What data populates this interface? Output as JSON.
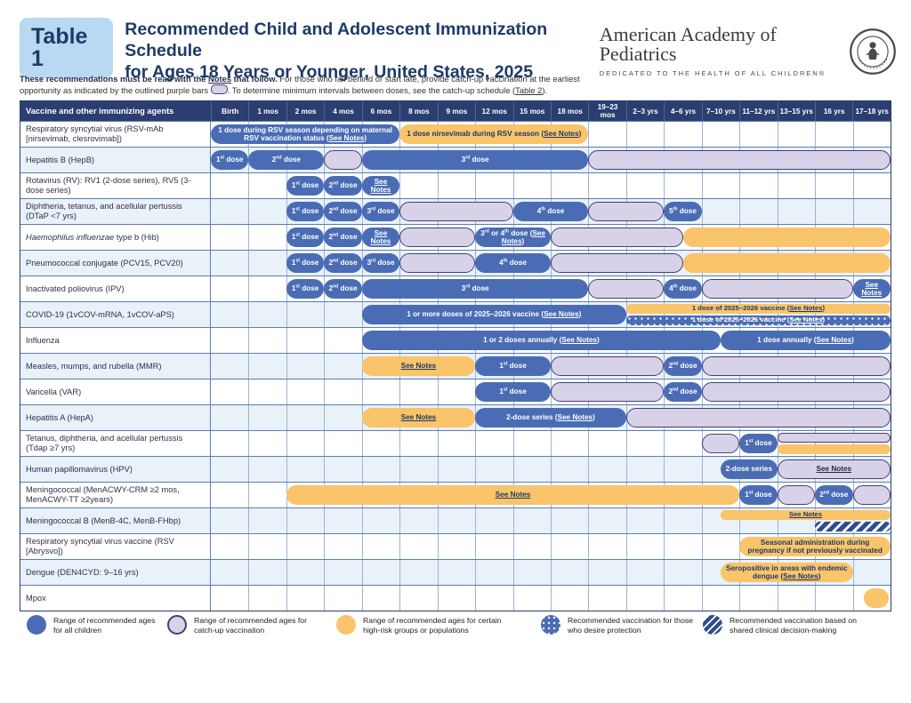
{
  "header": {
    "badge": "Table 1",
    "title_line1": "Recommended Child and Adolescent Immunization Schedule",
    "title_line2": "for Ages 18 Years or Younger, United States, 2025",
    "logo": {
      "name": "American Academy of Pediatrics",
      "tagline": "DEDICATED TO THE HEALTH OF ALL CHILDREN®"
    }
  },
  "intro": {
    "bold1": "These recommendations must be read with the ",
    "notes_link": "Notes",
    "bold2": " that follow.",
    "regular1": " For those who fall behind or start late, provide catch-up vaccination at the earliest opportunity as indicated by the outlined purple bars ",
    "regular2": ". To determine minimum intervals between doses, see the catch-up schedule (",
    "table2_link": "Table 2",
    "regular3": ")."
  },
  "colors": {
    "navy": "#2c3e70",
    "blue_bar": "#4a6cb4",
    "orange_bar": "#f9c46a",
    "purple_fill": "#d8d2e8",
    "purple_border": "#473c78",
    "even_row": "#e9f1f9",
    "badge_bg": "#b9d8f1",
    "title_text": "#1e3a68"
  },
  "table": {
    "corner": "Vaccine and other immunizing agents",
    "columns": [
      "Birth",
      "1 mos",
      "2 mos",
      "4 mos",
      "6 mos",
      "8 mos",
      "9 mos",
      "12 mos",
      "15 mos",
      "18 mos",
      "19–23 mos",
      "2–3 yrs",
      "4–6 yrs",
      "7–10 yrs",
      "11–12 yrs",
      "13–15 yrs",
      "16 yrs",
      "17–18 yrs"
    ],
    "rows": [
      {
        "id": "rsv-mab",
        "name": [
          {
            "t": "Respiratory syncytial virus (RSV-mAb [nirsevimab, clesrovimab])"
          }
        ],
        "bars": [
          {
            "c": "blue",
            "v": "full",
            "s": 0,
            "e": 5,
            "l": "1 dose during RSV season depending on maternal RSV vaccination status (See Notes)"
          },
          {
            "c": "orange",
            "v": "full",
            "s": 5,
            "e": 10,
            "l": "1 dose nirsevimab during RSV season (See Notes)"
          }
        ]
      },
      {
        "id": "hepb",
        "name": [
          {
            "t": "Hepatitis B (HepB)"
          }
        ],
        "bars": [
          {
            "c": "blue",
            "v": "full",
            "s": 0,
            "e": 1,
            "l": "1st dose"
          },
          {
            "c": "blue",
            "v": "full",
            "s": 1,
            "e": 3,
            "l": "2nd dose"
          },
          {
            "c": "purple",
            "v": "full",
            "s": 3,
            "e": 4,
            "l": ""
          },
          {
            "c": "blue",
            "v": "full",
            "s": 4,
            "e": 10,
            "l": "3rd dose"
          },
          {
            "c": "purple",
            "v": "full",
            "s": 10,
            "e": 18,
            "l": ""
          }
        ]
      },
      {
        "id": "rv",
        "name": [
          {
            "t": "Rotavirus (RV): RV1 (2-dose series), RV5 (3-dose series)"
          }
        ],
        "bars": [
          {
            "c": "blue",
            "v": "full",
            "s": 2,
            "e": 3,
            "l": "1st dose"
          },
          {
            "c": "blue",
            "v": "full",
            "s": 3,
            "e": 4,
            "l": "2nd dose"
          },
          {
            "c": "blue",
            "v": "full",
            "s": 4,
            "e": 5,
            "l": "See Notes"
          }
        ]
      },
      {
        "id": "dtap",
        "name": [
          {
            "t": "Diphtheria, tetanus, and acellular pertussis (DTaP <7 yrs)"
          }
        ],
        "bars": [
          {
            "c": "blue",
            "v": "full",
            "s": 2,
            "e": 3,
            "l": "1st dose"
          },
          {
            "c": "blue",
            "v": "full",
            "s": 3,
            "e": 4,
            "l": "2nd dose"
          },
          {
            "c": "blue",
            "v": "full",
            "s": 4,
            "e": 5,
            "l": "3rd dose"
          },
          {
            "c": "purple",
            "v": "full",
            "s": 5,
            "e": 8,
            "l": ""
          },
          {
            "c": "blue",
            "v": "full",
            "s": 8,
            "e": 10,
            "l": "4th dose"
          },
          {
            "c": "purple",
            "v": "full",
            "s": 10,
            "e": 12,
            "l": ""
          },
          {
            "c": "blue",
            "v": "full",
            "s": 12,
            "e": 13,
            "l": "5th dose"
          }
        ]
      },
      {
        "id": "hib",
        "name": [
          {
            "t": "Haemophilus influenzae",
            "i": true
          },
          {
            "t": " type b (Hib)"
          }
        ],
        "bars": [
          {
            "c": "blue",
            "v": "full",
            "s": 2,
            "e": 3,
            "l": "1st dose"
          },
          {
            "c": "blue",
            "v": "full",
            "s": 3,
            "e": 4,
            "l": "2nd dose"
          },
          {
            "c": "blue",
            "v": "full",
            "s": 4,
            "e": 5,
            "l": "See Notes"
          },
          {
            "c": "purple",
            "v": "full",
            "s": 5,
            "e": 7,
            "l": ""
          },
          {
            "c": "blue",
            "v": "full",
            "s": 7,
            "e": 9,
            "l": "3rd or 4th dose (See Notes)"
          },
          {
            "c": "purple",
            "v": "full",
            "s": 9,
            "e": 12.5,
            "l": ""
          },
          {
            "c": "orange",
            "v": "full",
            "s": 12.5,
            "e": 18,
            "l": ""
          }
        ]
      },
      {
        "id": "pcv",
        "name": [
          {
            "t": "Pneumococcal conjugate (PCV15, PCV20)"
          }
        ],
        "bars": [
          {
            "c": "blue",
            "v": "full",
            "s": 2,
            "e": 3,
            "l": "1st dose"
          },
          {
            "c": "blue",
            "v": "full",
            "s": 3,
            "e": 4,
            "l": "2nd dose"
          },
          {
            "c": "blue",
            "v": "full",
            "s": 4,
            "e": 5,
            "l": "3rd dose"
          },
          {
            "c": "purple",
            "v": "full",
            "s": 5,
            "e": 7,
            "l": ""
          },
          {
            "c": "blue",
            "v": "full",
            "s": 7,
            "e": 9,
            "l": "4th dose"
          },
          {
            "c": "purple",
            "v": "full",
            "s": 9,
            "e": 12.5,
            "l": ""
          },
          {
            "c": "orange",
            "v": "full",
            "s": 12.5,
            "e": 18,
            "l": ""
          }
        ]
      },
      {
        "id": "ipv",
        "name": [
          {
            "t": "Inactivated poliovirus (IPV)"
          }
        ],
        "bars": [
          {
            "c": "blue",
            "v": "full",
            "s": 2,
            "e": 3,
            "l": "1st dose"
          },
          {
            "c": "blue",
            "v": "full",
            "s": 3,
            "e": 4,
            "l": "2nd dose"
          },
          {
            "c": "blue",
            "v": "full",
            "s": 4,
            "e": 10,
            "l": "3rd dose"
          },
          {
            "c": "purple",
            "v": "full",
            "s": 10,
            "e": 12,
            "l": ""
          },
          {
            "c": "blue",
            "v": "full",
            "s": 12,
            "e": 13,
            "l": "4th dose"
          },
          {
            "c": "purple",
            "v": "full",
            "s": 13,
            "e": 17,
            "l": ""
          },
          {
            "c": "blue",
            "v": "full",
            "s": 17,
            "e": 18,
            "l": "See Notes"
          }
        ]
      },
      {
        "id": "covid",
        "name": [
          {
            "t": "COVID-19 (1vCOV-mRNA, 1vCOV-aPS)"
          }
        ],
        "bars": [
          {
            "c": "blue",
            "v": "full",
            "s": 4,
            "e": 11,
            "l": "1 or more doses of 2025–2026 vaccine (See Notes)"
          },
          {
            "c": "orange",
            "v": "top",
            "s": 11,
            "e": 18,
            "l": "1 dose of 2025–2026 vaccine (See Notes)"
          },
          {
            "c": "dotted",
            "v": "bot",
            "s": 11,
            "e": 18,
            "l": "1 dose of 2025–2026 vaccine (See Notes)"
          }
        ]
      },
      {
        "id": "influenza",
        "name": [
          {
            "t": "Influenza"
          }
        ],
        "bars": [
          {
            "c": "blue",
            "v": "full",
            "s": 4,
            "e": 13.5,
            "l": "1 or 2 doses annually (See Notes)"
          },
          {
            "c": "blue",
            "v": "full",
            "s": 13.5,
            "e": 18,
            "l": "1 dose annually (See Notes)"
          }
        ]
      },
      {
        "id": "mmr",
        "name": [
          {
            "t": "Measles, mumps, and rubella (MMR)"
          }
        ],
        "bars": [
          {
            "c": "orange",
            "v": "full",
            "s": 4,
            "e": 7,
            "l": "See Notes"
          },
          {
            "c": "blue",
            "v": "full",
            "s": 7,
            "e": 9,
            "l": "1st dose"
          },
          {
            "c": "purple",
            "v": "full",
            "s": 9,
            "e": 12,
            "l": ""
          },
          {
            "c": "blue",
            "v": "full",
            "s": 12,
            "e": 13,
            "l": "2nd dose"
          },
          {
            "c": "purple",
            "v": "full",
            "s": 13,
            "e": 18,
            "l": ""
          }
        ]
      },
      {
        "id": "var",
        "name": [
          {
            "t": "Varicella (VAR)"
          }
        ],
        "bars": [
          {
            "c": "blue",
            "v": "full",
            "s": 7,
            "e": 9,
            "l": "1st dose"
          },
          {
            "c": "purple",
            "v": "full",
            "s": 9,
            "e": 12,
            "l": ""
          },
          {
            "c": "blue",
            "v": "full",
            "s": 12,
            "e": 13,
            "l": "2nd dose"
          },
          {
            "c": "purple",
            "v": "full",
            "s": 13,
            "e": 18,
            "l": ""
          }
        ]
      },
      {
        "id": "hepa",
        "name": [
          {
            "t": "Hepatitis A (HepA)"
          }
        ],
        "bars": [
          {
            "c": "orange",
            "v": "full",
            "s": 4,
            "e": 7,
            "l": "See Notes"
          },
          {
            "c": "blue",
            "v": "full",
            "s": 7,
            "e": 11,
            "l": "2-dose series (See Notes)"
          },
          {
            "c": "purple",
            "v": "full",
            "s": 11,
            "e": 18,
            "l": ""
          }
        ]
      },
      {
        "id": "tdap",
        "name": [
          {
            "t": "Tetanus, diphtheria, and acellular pertussis (Tdap ≥7 yrs)"
          }
        ],
        "bars": [
          {
            "c": "purple",
            "v": "full",
            "s": 13,
            "e": 14,
            "l": ""
          },
          {
            "c": "blue",
            "v": "full",
            "s": 14,
            "e": 15,
            "l": "1st dose"
          },
          {
            "c": "purple",
            "v": "top",
            "s": 15,
            "e": 18,
            "l": ""
          },
          {
            "c": "orange",
            "v": "bot",
            "s": 15,
            "e": 18,
            "l": ""
          }
        ]
      },
      {
        "id": "hpv",
        "name": [
          {
            "t": "Human papillomavirus (HPV)"
          }
        ],
        "bars": [
          {
            "c": "blue",
            "v": "full",
            "s": 13.5,
            "e": 15,
            "l": "2-dose series"
          },
          {
            "c": "purple",
            "v": "full",
            "s": 15,
            "e": 18,
            "l": "See Notes"
          }
        ]
      },
      {
        "id": "menacwy",
        "name": [
          {
            "t": "Meningococcal (MenACWY-CRM ≥2 mos, MenACWY-TT ≥2years)"
          }
        ],
        "bars": [
          {
            "c": "orange",
            "v": "full",
            "s": 2,
            "e": 14,
            "l": "See Notes"
          },
          {
            "c": "blue",
            "v": "full",
            "s": 14,
            "e": 15,
            "l": "1st dose"
          },
          {
            "c": "purple",
            "v": "full",
            "s": 15,
            "e": 16,
            "l": ""
          },
          {
            "c": "blue",
            "v": "full",
            "s": 16,
            "e": 17,
            "l": "2nd dose"
          },
          {
            "c": "purple",
            "v": "full",
            "s": 17,
            "e": 18,
            "l": ""
          }
        ]
      },
      {
        "id": "menb",
        "name": [
          {
            "t": "Meningococcal B (MenB-4C, MenB-FHbp)"
          }
        ],
        "bars": [
          {
            "c": "orange",
            "v": "top",
            "s": 13.5,
            "e": 18,
            "l": "See Notes"
          },
          {
            "c": "hatched",
            "v": "bot",
            "s": 16,
            "e": 18,
            "l": ""
          }
        ]
      },
      {
        "id": "rsv-vaccine",
        "name": [
          {
            "t": "Respiratory syncytial virus vaccine (RSV [Abrysvo])"
          }
        ],
        "bars": [
          {
            "c": "orange",
            "v": "full",
            "s": 14,
            "e": 18,
            "l": "Seasonal administration during pregnancy if not previously vaccinated"
          }
        ]
      },
      {
        "id": "dengue",
        "name": [
          {
            "t": "Dengue (DEN4CYD: 9–16 yrs)"
          }
        ],
        "bars": [
          {
            "c": "orange",
            "v": "full",
            "s": 13.5,
            "e": 17,
            "l": "Seropositive in areas with endemic dengue (See Notes)"
          }
        ]
      },
      {
        "id": "mpox",
        "name": [
          {
            "t": "Mpox"
          }
        ],
        "bars": [
          {
            "c": "orange",
            "v": "full",
            "s": 17.3,
            "e": 17.95,
            "l": ""
          }
        ]
      }
    ]
  },
  "legend": [
    {
      "style": "blue",
      "text": "Range of recommended ages for all children"
    },
    {
      "style": "purple",
      "text": "Range of recommended ages for catch-up vaccination"
    },
    {
      "style": "orange",
      "text": "Range of recommended ages for certain high-risk groups or populations"
    },
    {
      "style": "dotted",
      "text": "Recommended vaccination for those who desire protection"
    },
    {
      "style": "hatched",
      "text": "Recommended vaccination based on shared clinical decision-making"
    }
  ]
}
